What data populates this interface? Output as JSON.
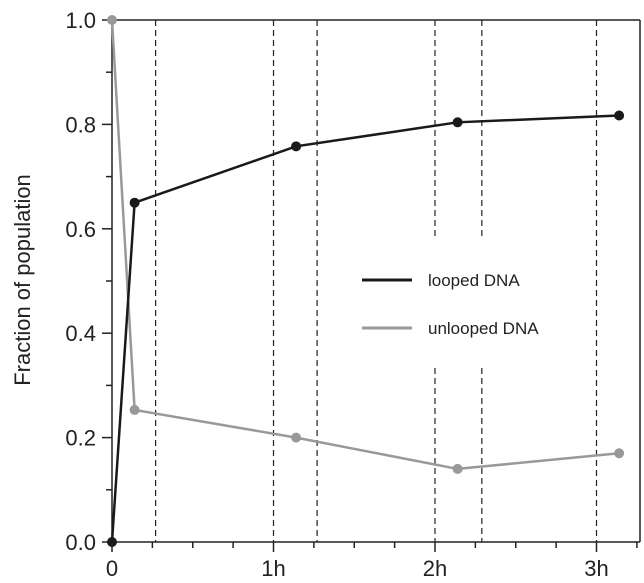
{
  "chart_data": {
    "type": "line",
    "title": "",
    "xlabel": "",
    "ylabel": "Fraction of population",
    "x_ticks": [
      {
        "value": 0,
        "label": "0"
      },
      {
        "value": 1,
        "label": "1h"
      },
      {
        "value": 2,
        "label": "2h"
      },
      {
        "value": 3,
        "label": "3h"
      }
    ],
    "y_ticks": [
      {
        "value": 0.0,
        "label": "0.0"
      },
      {
        "value": 0.2,
        "label": "0.2"
      },
      {
        "value": 0.4,
        "label": "0.4"
      },
      {
        "value": 0.6,
        "label": "0.6"
      },
      {
        "value": 0.8,
        "label": "0.8"
      },
      {
        "value": 1.0,
        "label": "1.0"
      }
    ],
    "xlim": [
      0,
      3.3
    ],
    "ylim": [
      0,
      1.0
    ],
    "vertical_dashed_lines": [
      0.27,
      1.0,
      1.27,
      2.0,
      2.29,
      3.0
    ],
    "legend_position": "center-right",
    "series": [
      {
        "name": "looped DNA",
        "color": "#1a1a1a",
        "x": [
          0,
          0.14,
          1.14,
          2.14,
          3.14
        ],
        "y": [
          0.0,
          0.65,
          0.758,
          0.804,
          0.817
        ]
      },
      {
        "name": "unlooped DNA",
        "color": "#999999",
        "x": [
          0,
          0.14,
          1.14,
          2.14,
          3.14
        ],
        "y": [
          1.0,
          0.253,
          0.2,
          0.14,
          0.17
        ]
      }
    ]
  }
}
